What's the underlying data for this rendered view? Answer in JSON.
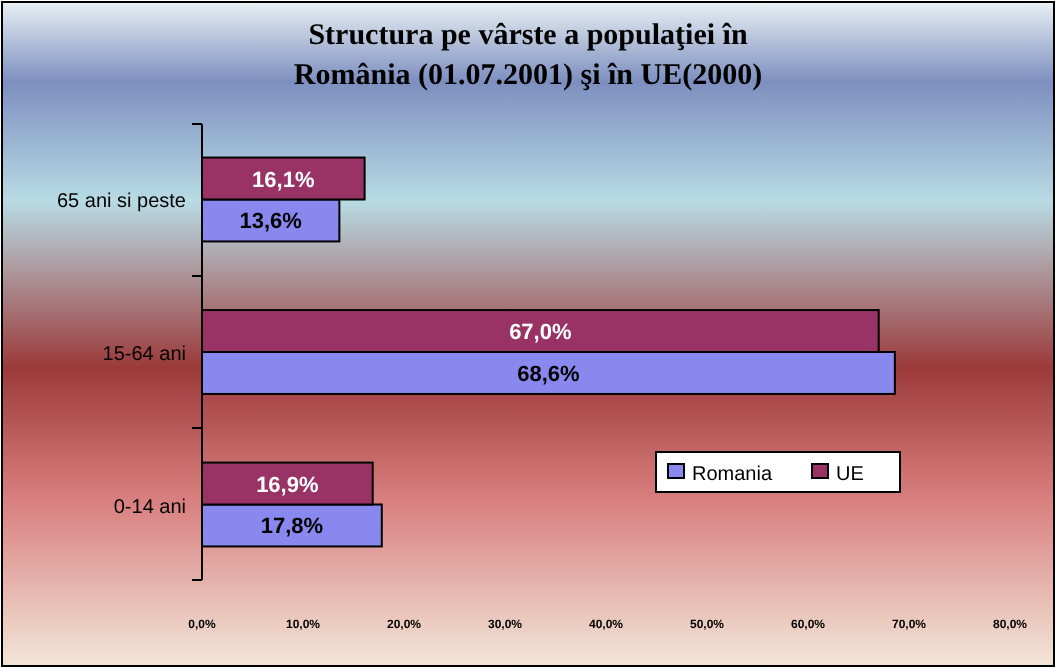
{
  "chart_data": {
    "type": "bar",
    "orientation": "horizontal",
    "title": "Structura pe vârste a populaţiei în România (01.07.2001) şi în UE(2000)",
    "categories": [
      "65 ani si peste",
      "15-64 ani",
      "0-14 ani"
    ],
    "series": [
      {
        "name": "Romania",
        "color": "#8888ee",
        "values": [
          13.6,
          68.6,
          17.8
        ],
        "value_labels": [
          "13,6%",
          "68,6%",
          "17,8%"
        ]
      },
      {
        "name": "UE",
        "color": "#993366",
        "values": [
          16.1,
          67.0,
          16.9
        ],
        "value_labels": [
          "16,1%",
          "67,0%",
          "16,9%"
        ]
      }
    ],
    "xlim": [
      0,
      80
    ],
    "xticks": [
      {
        "value": 0,
        "label": "0,0%"
      },
      {
        "value": 10,
        "label": "10,0%"
      },
      {
        "value": 20,
        "label": "20,0%"
      },
      {
        "value": 30,
        "label": "30,0%"
      },
      {
        "value": 40,
        "label": "40,0%"
      },
      {
        "value": 50,
        "label": "50,0%"
      },
      {
        "value": 60,
        "label": "60,0%"
      },
      {
        "value": 70,
        "label": "70,0%"
      },
      {
        "value": 80,
        "label": "80,0%"
      }
    ],
    "legend": "bottom right",
    "grid": false
  }
}
